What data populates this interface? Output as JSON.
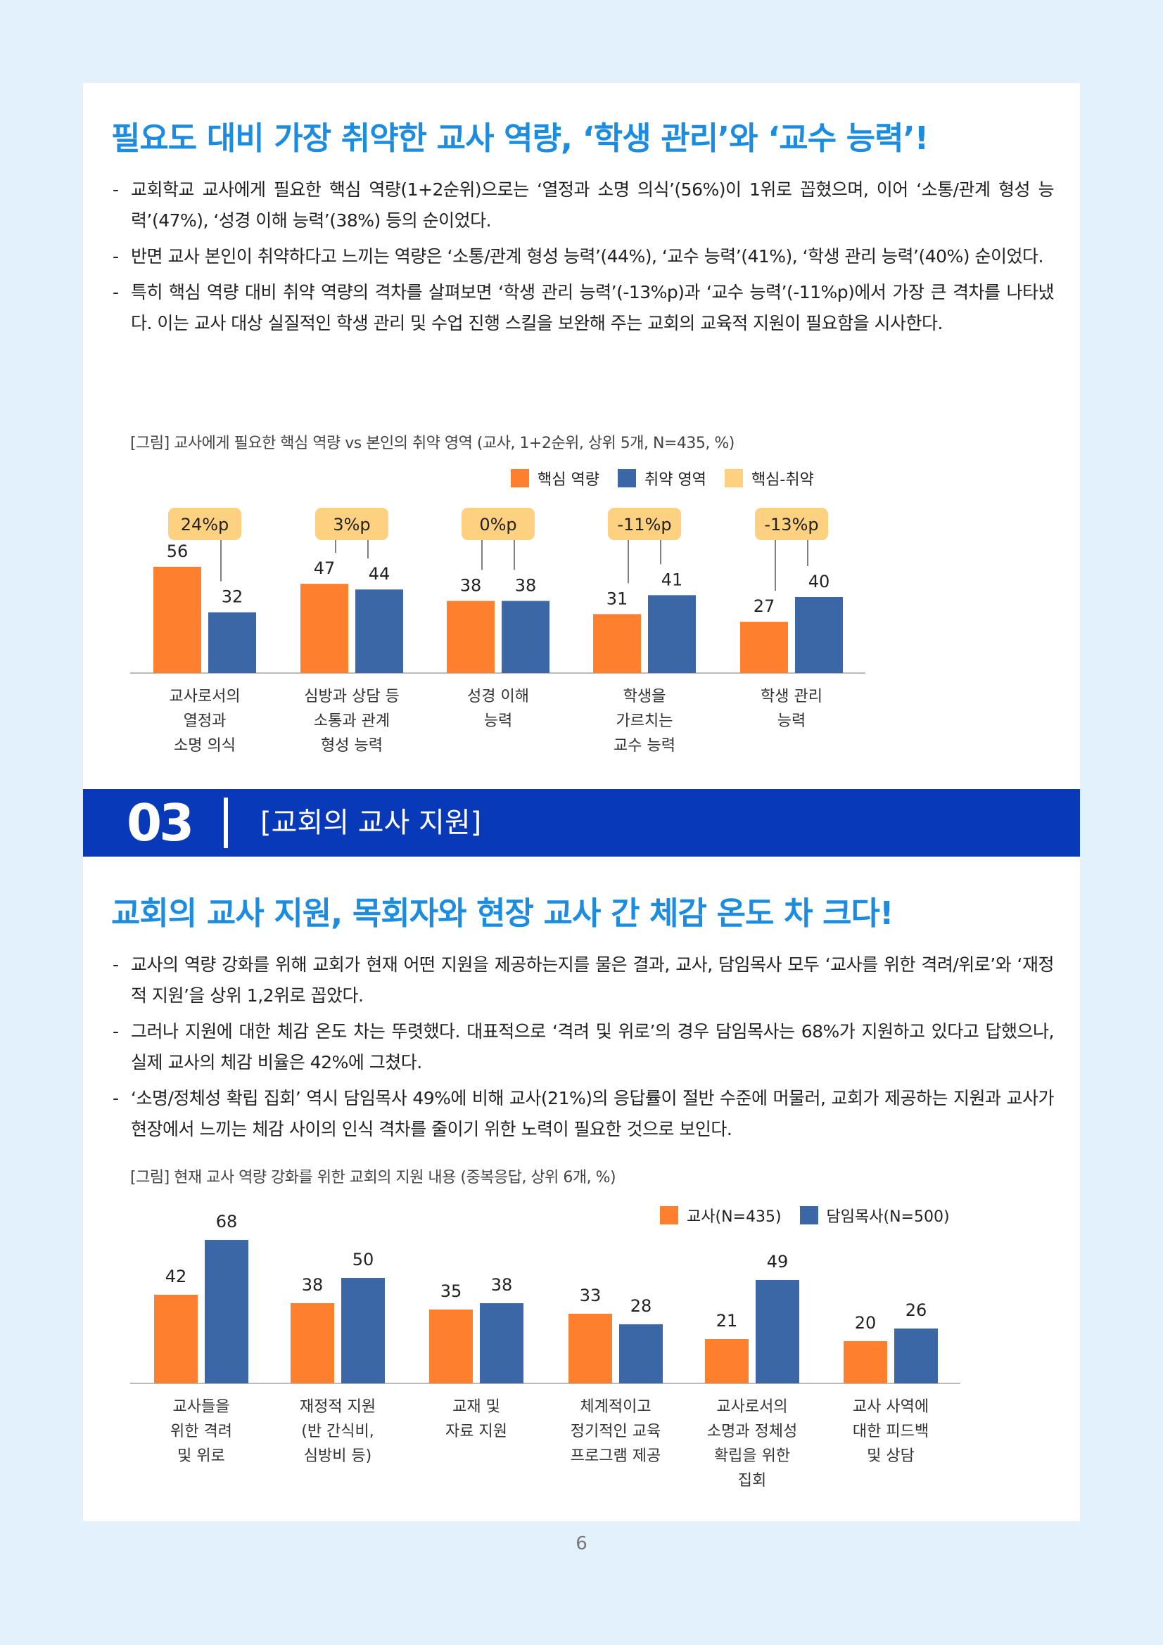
{
  "section1": {
    "heading": "필요도 대비 가장 취약한 교사 역량, ‘학생 관리’와 ‘교수 능력’!",
    "bullets": [
      "교회학교 교사에게 필요한 핵심 역량(1+2순위)으로는 ‘열정과 소명 의식’(56%)이 1위로 꼽혔으며, 이어 ‘소통/관계 형성 능력’(47%), ‘성경 이해 능력’(38%) 등의 순이었다.",
      "반면 교사 본인이 취약하다고 느끼는 역량은 ‘소통/관계 형성 능력’(44%), ‘교수 능력’(41%), ‘학생 관리 능력’(40%) 순이었다.",
      "특히 핵심 역량 대비 취약 역량의 격차를 살펴보면 ‘학생 관리 능력’(-13%p)과 ‘교수 능력’(-11%p)에서 가장 큰 격차를 나타냈다. 이는 교사 대상 실질적인 학생 관리 및 수업 진행 스킬을 보완해 주는 교회의 교육적 지원이 필요함을 시사한다."
    ],
    "caption": "[그림] 교사에게 필요한 핵심 역량 vs 본인의 취약 영역 (교사, 1+2순위, 상위 5개, N=435, %)"
  },
  "section_bar": {
    "number": "03",
    "title": "[교회의 교사 지원]"
  },
  "section2": {
    "heading": "교회의 교사 지원, 목회자와 현장 교사 간 체감 온도 차 크다!",
    "bullets": [
      "교사의 역량 강화를 위해 교회가 현재 어떤 지원을 제공하는지를 물은 결과, 교사, 담임목사 모두 ‘교사를 위한 격려/위로’와 ‘재정적 지원’을 상위 1,2위로 꼽았다.",
      "그러나 지원에 대한 체감 온도 차는 뚜렷했다. 대표적으로 ‘격려 및 위로’의 경우 담임목사는 68%가 지원하고 있다고 답했으나, 실제 교사의 체감 비율은 42%에 그쳤다.",
      "‘소명/정체성 확립 집회’ 역시 담임목사 49%에 비해 교사(21%)의 응답률이 절반 수준에 머물러, 교회가 제공하는 지원과 교사가 현장에서 느끼는 체감 사이의 인식 격차를 줄이기 위한 노력이 필요한 것으로 보인다."
    ],
    "caption": "[그림] 현재 교사 역량 강화를 위한 교회의 지원 내용 (중복응답, 상위 6개, %)"
  },
  "page_number": "6",
  "colors": {
    "orange": "#fe7f2d",
    "blue": "#3b67a6",
    "gap": "#fdd180",
    "heading": "#1c8ce0",
    "section_bar": "#0839b8"
  },
  "chart_data": [
    {
      "type": "bar",
      "categories": [
        [
          "교사로서의",
          "열정과",
          "소명 의식"
        ],
        [
          "심방과 상담 등",
          "소통과 관계",
          "형성 능력"
        ],
        [
          "성경 이해",
          "능력"
        ],
        [
          "학생을",
          "가르치는",
          "교수 능력"
        ],
        [
          "학생 관리",
          "능력"
        ]
      ],
      "series": [
        {
          "name": "핵심 역량",
          "values": [
            56,
            47,
            38,
            31,
            27
          ]
        },
        {
          "name": "취약 영역",
          "values": [
            32,
            44,
            38,
            41,
            40
          ]
        }
      ],
      "gap_series_name": "핵심-취약",
      "gap_labels": [
        "24%p",
        "3%p",
        "0%p",
        "-11%p",
        "-13%p"
      ],
      "ylim": [
        0,
        70
      ],
      "legend": "top"
    },
    {
      "type": "bar",
      "categories": [
        [
          "교사들을",
          "위한 격려",
          "및 위로"
        ],
        [
          "재정적 지원",
          "(반 간식비,",
          "심방비 등)"
        ],
        [
          "교재 및",
          "자료 지원"
        ],
        [
          "체계적이고",
          "정기적인 교육",
          "프로그램 제공"
        ],
        [
          "교사로서의",
          "소명과 정체성",
          "확립을 위한",
          "집회"
        ],
        [
          "교사 사역에",
          "대한 피드백",
          "및 상담"
        ]
      ],
      "series": [
        {
          "name": "교사(N=435)",
          "values": [
            42,
            38,
            35,
            33,
            21,
            20
          ]
        },
        {
          "name": "담임목사(N=500)",
          "values": [
            68,
            50,
            38,
            28,
            49,
            26
          ]
        }
      ],
      "ylim": [
        0,
        75
      ],
      "legend": "top-right"
    }
  ]
}
